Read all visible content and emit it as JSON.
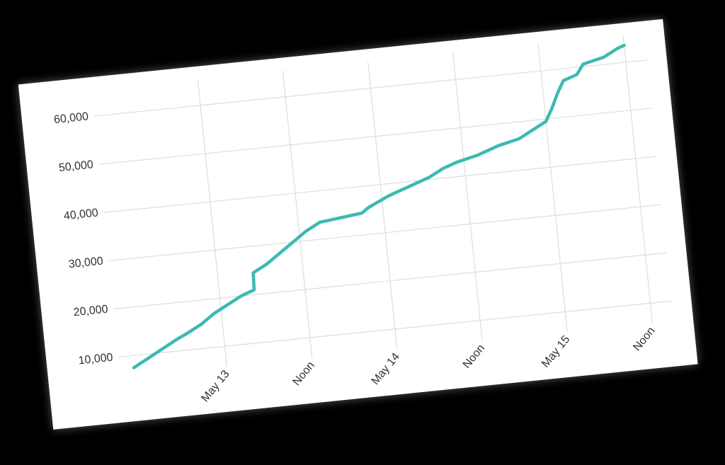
{
  "chart_data": {
    "type": "line",
    "x": [
      -13,
      -6.5,
      -5,
      -3,
      -1,
      1,
      3,
      4.9,
      5,
      7,
      9,
      11,
      13,
      15,
      18,
      21,
      22,
      25,
      28,
      31,
      33,
      35,
      38,
      41,
      44,
      46,
      48,
      49,
      50,
      51,
      53,
      54,
      57,
      59,
      60
    ],
    "series": [
      {
        "color": "#3dbab0",
        "values": [
          7500,
          12500,
          13500,
          15000,
          17000,
          18500,
          20000,
          21000,
          24500,
          26000,
          28000,
          30000,
          32000,
          33500,
          34000,
          34500,
          35500,
          37500,
          39000,
          40500,
          42000,
          43000,
          44000,
          45500,
          46500,
          48000,
          49500,
          52000,
          55000,
          57500,
          58500,
          60500,
          61500,
          63000,
          63500
        ]
      }
    ],
    "xlim": [
      -13,
      60
    ],
    "xticks": [
      {
        "value": 0,
        "label": "May 13"
      },
      {
        "value": 12,
        "label": "Noon"
      },
      {
        "value": 24,
        "label": "May 14"
      },
      {
        "value": 36,
        "label": "Noon"
      },
      {
        "value": 48,
        "label": "May 15"
      },
      {
        "value": 60,
        "label": "Noon"
      }
    ],
    "ylim": [
      7000,
      64000
    ],
    "yticks": [
      {
        "value": 10000,
        "label": "10,000"
      },
      {
        "value": 20000,
        "label": "20,000"
      },
      {
        "value": 30000,
        "label": "30,000"
      },
      {
        "value": 40000,
        "label": "40,000"
      },
      {
        "value": 50000,
        "label": "50,000"
      },
      {
        "value": 60000,
        "label": "60,000"
      }
    ],
    "grid": true
  }
}
